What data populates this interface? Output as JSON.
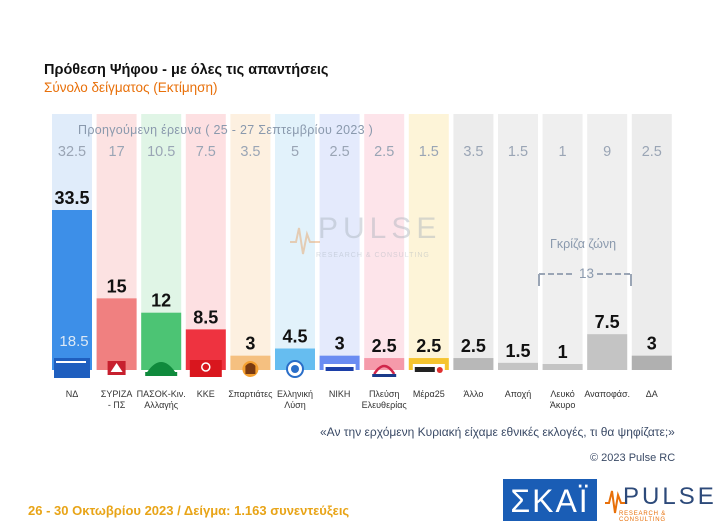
{
  "header": {
    "title": "Πρόθεση Ψήφου - με όλες τις απαντήσεις",
    "subtitle": "Σύνολο δείγματος   (Εκτίμηση)"
  },
  "previous_survey_label": "Προηγούμενη έρευνα  ( 25 - 27 Σεπτεμβρίου 2023 )",
  "chart_data": {
    "type": "bar",
    "categories": [
      "ΝΔ",
      "ΣΥΡΙΖΑ - ΠΣ",
      "ΠΑΣΟΚ-Κιν. Αλλαγής",
      "ΚΚΕ",
      "Σπαρτιάτες",
      "Ελληνική Λύση",
      "ΝΙΚΗ",
      "Πλεύση Ελευθερίας",
      "Μέρα25",
      "Άλλο",
      "Αποχή",
      "Λευκό Άκυρο",
      "Αναποφάσ.",
      "ΔΑ"
    ],
    "category_lines": [
      [
        "ΝΔ"
      ],
      [
        "ΣΥΡΙΖΑ",
        "- ΠΣ"
      ],
      [
        "ΠΑΣΟΚ-Κιν.",
        "Αλλαγής"
      ],
      [
        "ΚΚΕ"
      ],
      [
        "Σπαρτιάτες"
      ],
      [
        "Ελληνική",
        "Λύση"
      ],
      [
        "ΝΙΚΗ"
      ],
      [
        "Πλεύση",
        "Ελευθερίας"
      ],
      [
        "Μέρα25"
      ],
      [
        "Άλλο"
      ],
      [
        "Αποχή"
      ],
      [
        "Λευκό",
        "Άκυρο"
      ],
      [
        "Αναποφάσ."
      ],
      [
        "ΔΑ"
      ]
    ],
    "values": [
      "33.5",
      "15",
      "12",
      "8.5",
      "3",
      "4.5",
      "3",
      "2.5",
      "2.5",
      "2.5",
      "1.5",
      "1",
      "7.5",
      "3"
    ],
    "previous_values": [
      "32.5",
      "17",
      "10.5",
      "7.5",
      "3.5",
      "5",
      "2.5",
      "2.5",
      "1.5",
      "3.5",
      "1.5",
      "1",
      "9",
      "2.5"
    ],
    "colors": [
      "#3d8fe8",
      "#f08080",
      "#4cc474",
      "#ee3340",
      "#f5c080",
      "#66bdf0",
      "#6a8cf2",
      "#f59aaa",
      "#f5c430",
      "#b8b8b8",
      "#c4c4c4",
      "#c4c4c4",
      "#c4c4c4",
      "#b0b0b0"
    ],
    "bg_colors": [
      "#e0ecfa",
      "#fce2e2",
      "#e0f5e6",
      "#fde0e2",
      "#fdf0e0",
      "#e2f2fb",
      "#e4eafc",
      "#fde4ea",
      "#fdf4d8",
      "#ececec",
      "#efefef",
      "#efefef",
      "#efefef",
      "#ececec"
    ],
    "ylim": [
      0,
      36
    ],
    "annotation": "18.5",
    "grey_zone_label": "Γκρίζα ζώνη",
    "grey_zone_value": "13"
  },
  "watermark": {
    "text": "PULSE",
    "sub": "RESEARCH & CONSULTING"
  },
  "question": "«Αν την ερχόμενη Κυριακή είχαμε εθνικές εκλογές, τι θα ψηφίζατε;»",
  "copyright": "© 2023 Pulse RC",
  "footer": "26 - 30  Οκτωβρίου  2023  /  Δείγμα:  1.163 συνεντεύξεις",
  "logos": {
    "skai": "ΣΚΑΪ",
    "pulse": "PULSE",
    "pulse_sub": "RESEARCH & CONSULTING"
  },
  "icons": [
    "nd-logo-icon",
    "syriza-logo-icon",
    "pasok-logo-icon",
    "kke-logo-icon",
    "spartiates-logo-icon",
    "elliniki-lysi-logo-icon",
    "niki-logo-icon",
    "plefsi-logo-icon",
    "mera25-logo-icon"
  ]
}
